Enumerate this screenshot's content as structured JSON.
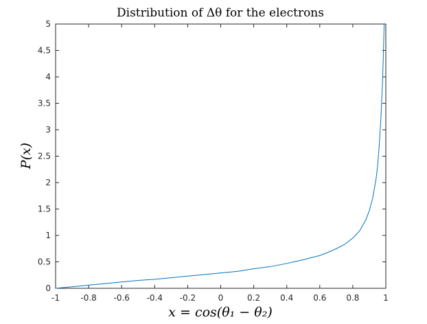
{
  "chart_data": {
    "type": "line",
    "title": "Distribution of Δθ for the electrons",
    "xlabel": "x = cos(θ₁ − θ₂)",
    "ylabel": "P(x)",
    "xlim": [
      -1,
      1
    ],
    "ylim": [
      0,
      5
    ],
    "x_ticks": [
      -1,
      -0.8,
      -0.6,
      -0.4,
      -0.2,
      0,
      0.2,
      0.4,
      0.6,
      0.8,
      1
    ],
    "x_tick_labels": [
      "-1",
      "-0.8",
      "-0.6",
      "-0.4",
      "-0.2",
      "0",
      "0.2",
      "0.4",
      "0.6",
      "0.8",
      "1"
    ],
    "y_ticks": [
      0,
      0.5,
      1,
      1.5,
      2,
      2.5,
      3,
      3.5,
      4,
      4.5,
      5
    ],
    "y_tick_labels": [
      "0",
      "0.5",
      "1",
      "1.5",
      "2",
      "2.5",
      "3",
      "3.5",
      "4",
      "4.5",
      "5"
    ],
    "grid": false,
    "series": [
      {
        "color": "#0072BD",
        "x": [
          -1.0,
          -0.9,
          -0.8,
          -0.7,
          -0.6,
          -0.5,
          -0.4,
          -0.3,
          -0.2,
          -0.1,
          0.0,
          0.1,
          0.2,
          0.3,
          0.4,
          0.5,
          0.6,
          0.65,
          0.7,
          0.75,
          0.8,
          0.84,
          0.88,
          0.9,
          0.92,
          0.94,
          0.95,
          0.96,
          0.97,
          0.98,
          0.985,
          0.99
        ],
        "y": [
          0.0,
          0.03,
          0.06,
          0.09,
          0.12,
          0.15,
          0.17,
          0.2,
          0.23,
          0.26,
          0.29,
          0.32,
          0.37,
          0.41,
          0.47,
          0.54,
          0.62,
          0.68,
          0.75,
          0.83,
          0.95,
          1.08,
          1.3,
          1.47,
          1.7,
          2.05,
          2.3,
          2.7,
          3.2,
          3.9,
          4.4,
          5.0
        ]
      }
    ]
  }
}
